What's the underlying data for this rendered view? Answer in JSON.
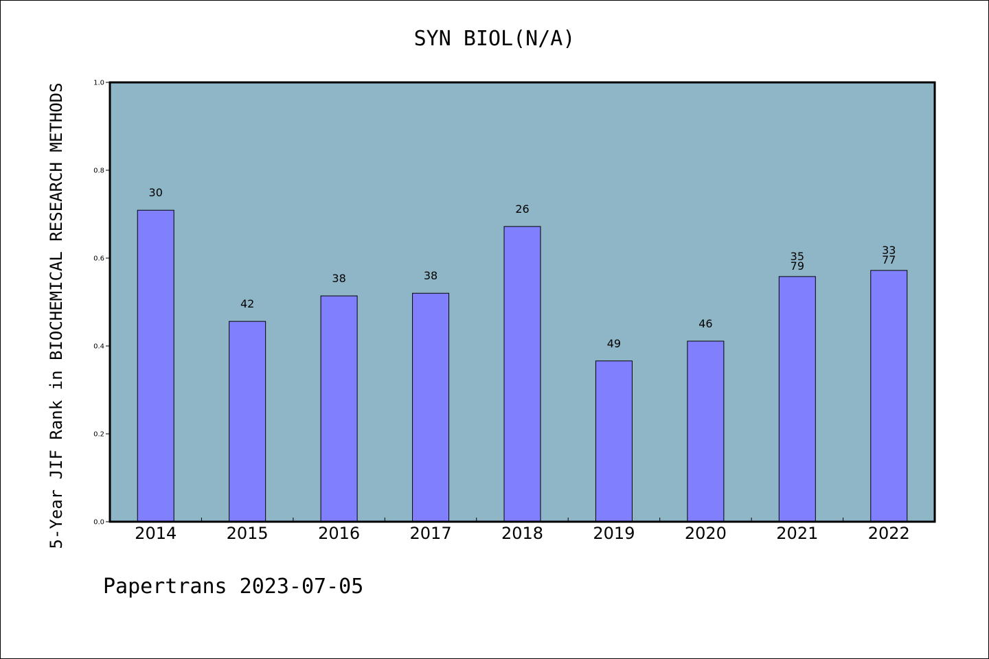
{
  "chart_data": {
    "type": "bar",
    "title": "SYN BIOL(N/A)",
    "xlabel": "",
    "ylabel": "5-Year JIF Rank in BIOCHEMICAL RESEARCH METHODS",
    "categories": [
      "2014",
      "2015",
      "2016",
      "2017",
      "2018",
      "2019",
      "2020",
      "2021",
      "2022"
    ],
    "values": [
      0.709,
      0.456,
      0.514,
      0.52,
      0.672,
      0.366,
      0.411,
      0.558,
      0.572
    ],
    "data_labels": [
      [
        "30"
      ],
      [
        "42"
      ],
      [
        "38"
      ],
      [
        "38"
      ],
      [
        "26"
      ],
      [
        "49"
      ],
      [
        "46"
      ],
      [
        "35",
        "79"
      ],
      [
        "33",
        "77"
      ]
    ],
    "ylim": [
      0,
      1.0
    ],
    "yticks": [
      "0.0",
      "0.2",
      "0.4",
      "0.6",
      "0.8",
      "1.0"
    ],
    "grid": false,
    "colors": {
      "plot_background": "#8fb6c6",
      "bar_fill": "#8080ff",
      "bar_stroke": "#000000"
    }
  },
  "footer": {
    "text": "Papertrans 2023-07-05"
  }
}
